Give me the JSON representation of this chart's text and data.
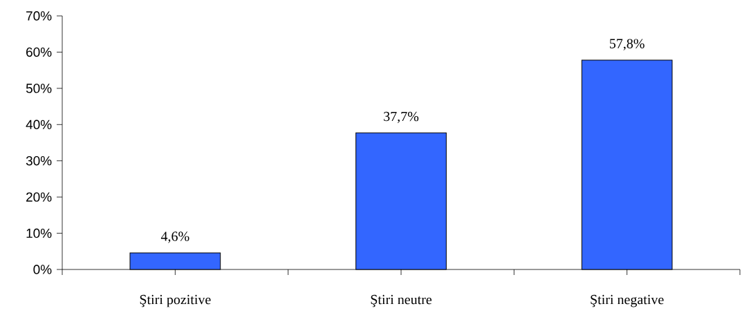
{
  "chart_data": {
    "type": "bar",
    "categories": [
      "Ştiri pozitive",
      "Ştiri neutre",
      "Ştiri negative"
    ],
    "values": [
      4.6,
      37.7,
      57.8
    ],
    "value_labels": [
      "4,6%",
      "37,7%",
      "57,8%"
    ],
    "color": "#3366ff",
    "ylim": [
      0,
      70
    ],
    "yticks": [
      {
        "value": 0,
        "label": "0%"
      },
      {
        "value": 10,
        "label": "10%"
      },
      {
        "value": 20,
        "label": "20%"
      },
      {
        "value": 30,
        "label": "30%"
      },
      {
        "value": 40,
        "label": "40%"
      },
      {
        "value": 50,
        "label": "50%"
      },
      {
        "value": 60,
        "label": "60%"
      },
      {
        "value": 70,
        "label": "70%"
      }
    ],
    "grid": false
  }
}
